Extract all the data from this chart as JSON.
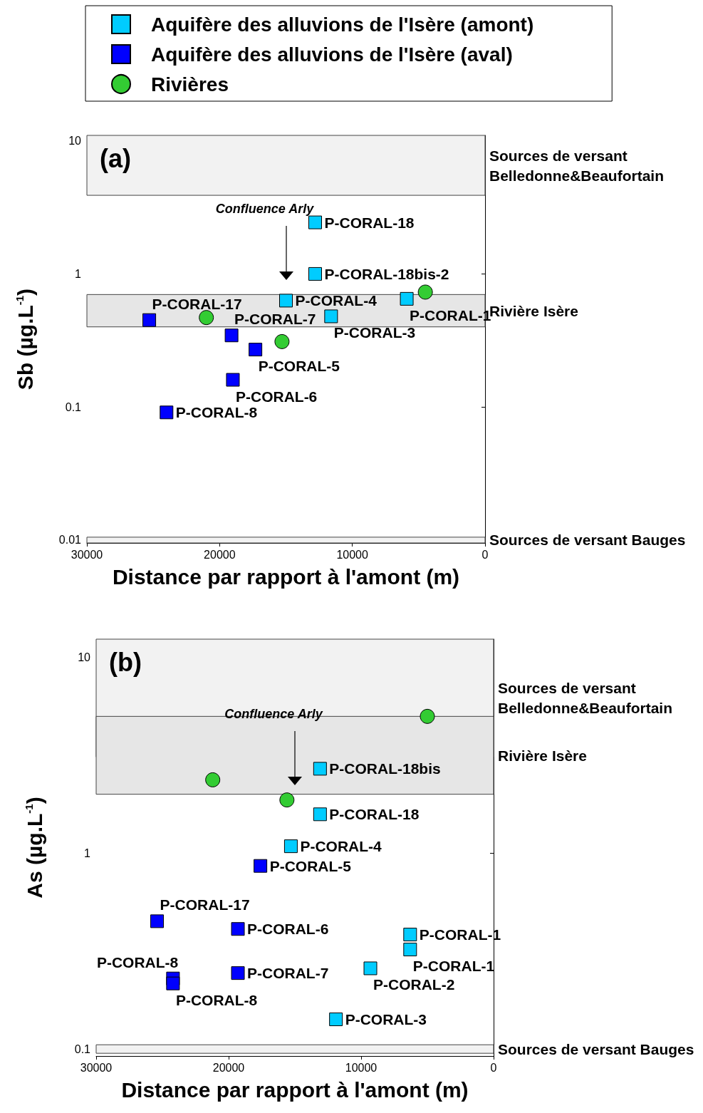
{
  "chart_data": [
    {
      "type": "scatter",
      "xlabel": "Distance par rapport à l'amont (m)",
      "ylabel": "Sb (µg.L$^{-1}$)",
      "log": "y",
      "grid": false,
      "legend": "top",
      "xlim": [
        30000,
        0
      ],
      "xticks": [
        30000,
        20000,
        10000,
        0
      ],
      "ylim": [
        0.0095,
        11
      ],
      "yticks": [
        0.01,
        0.1,
        1,
        10
      ],
      "series": [
        {
          "name": "Aquifère des alluvions de l'Isère (amont)",
          "color": "#00ccff",
          "marker": "square",
          "x": [
            12800,
            12800,
            15000,
            5900,
            11600
          ],
          "values": [
            2.44,
            1.0,
            0.63,
            0.65,
            0.48
          ],
          "value_labels": [
            "P-CORAL-18",
            "P-CORAL-18bis-2",
            "P-CORAL-4",
            "P-CORAL-1",
            "P-CORAL-3"
          ]
        },
        {
          "name": "Aquifère des alluvions de l'Isère (aval)",
          "color": "#0000ff",
          "marker": "square",
          "x": [
            25300,
            19100,
            17300,
            19000,
            24000
          ],
          "values": [
            0.45,
            0.345,
            0.27,
            0.16,
            0.091
          ],
          "value_labels": [
            "P-CORAL-17",
            "P-CORAL-7",
            "P-CORAL-5",
            "P-CORAL-6",
            "P-CORAL-8"
          ]
        },
        {
          "name": "Rivières",
          "color": "#33cc33",
          "marker": "circle",
          "x": [
            21000,
            15300,
            4500
          ],
          "values": [
            0.47,
            0.31,
            0.73
          ]
        }
      ],
      "bands": [
        {
          "axis": "y",
          "from": 3.9,
          "to": 11,
          "label": "Sources de versant Belledonne&Beaufortain",
          "color": "#f2f2f2"
        },
        {
          "axis": "y",
          "from": 0.4,
          "to": 0.7,
          "label": "Rivière Isère",
          "color": "#e6e6e6"
        },
        {
          "axis": "y",
          "from": 0.0095,
          "to": 0.0105,
          "label": "Sources de versant Bauges",
          "color": "#f2f2f2"
        }
      ],
      "annotations": [
        "(a)",
        "Confluence Arly"
      ]
    },
    {
      "type": "scatter",
      "xlabel": "Distance par rapport à l'amont (m)",
      "ylabel": "As (µg.L$^{-1}$)",
      "log": "y",
      "grid": false,
      "legend": false,
      "xlim": [
        30000,
        0
      ],
      "xticks": [
        30000,
        20000,
        10000,
        0
      ],
      "ylim": [
        0.092,
        12.4
      ],
      "yticks": [
        0.1,
        1,
        10
      ],
      "series": [
        {
          "color": "#00ccff",
          "marker": "square",
          "x": [
            13100,
            13100,
            15300,
            6300,
            6300,
            9300,
            11900
          ],
          "values": [
            2.7,
            1.58,
            1.085,
            0.384,
            0.322,
            0.258,
            0.1416
          ],
          "value_labels": [
            "P-CORAL-18bis",
            "P-CORAL-18",
            "P-CORAL-4",
            "P-CORAL-1",
            "P-CORAL-1",
            "P-CORAL-2",
            "P-CORAL-3"
          ]
        },
        {
          "color": "#0000ff",
          "marker": "square",
          "x": [
            17600,
            25400,
            19300,
            19300,
            24200,
            24200
          ],
          "values": [
            0.861,
            0.449,
            0.41,
            0.244,
            0.229,
            0.216
          ],
          "value_labels": [
            "P-CORAL-5",
            "P-CORAL-17",
            "P-CORAL-6",
            "P-CORAL-7",
            "P-CORAL-8",
            "P-CORAL-8"
          ]
        },
        {
          "color": "#33cc33",
          "marker": "circle",
          "x": [
            5000,
            21200,
            15600
          ],
          "values": [
            5.0,
            2.37,
            1.87
          ]
        }
      ],
      "bands": [
        {
          "axis": "y",
          "from": 3.1,
          "to": 12.4,
          "label": "Sources de versant Belledonne&Beaufortain",
          "color": "#f2f2f2"
        },
        {
          "axis": "y",
          "from": 2,
          "to": 5,
          "label": "Rivière Isère",
          "color": "#e6e6e6"
        },
        {
          "axis": "y",
          "from": 0.095,
          "to": 0.105,
          "label": "Sources de versant Bauges",
          "color": "#f2f2f2"
        }
      ],
      "annotations": [
        "(b)",
        "Confluence Arly"
      ]
    }
  ]
}
